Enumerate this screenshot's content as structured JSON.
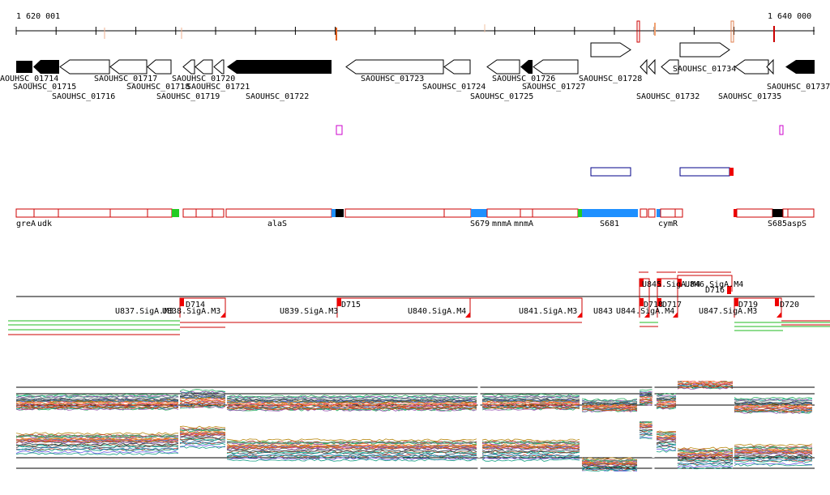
{
  "ruler": {
    "start_label": "1 620 001",
    "end_label": "1 640 000"
  },
  "genes": [
    {
      "label": "SAOUHSC_01714",
      "strand": "-",
      "filled": true
    },
    {
      "label": "SAOUHSC_01715",
      "strand": "-",
      "filled": true
    },
    {
      "label": "SAOUHSC_01716",
      "strand": "-",
      "filled": false
    },
    {
      "label": "SAOUHSC_01717",
      "strand": "-",
      "filled": false
    },
    {
      "label": "SAOUHSC_01718",
      "strand": "-",
      "filled": false
    },
    {
      "label": "SAOUHSC_01719",
      "strand": "-",
      "filled": false
    },
    {
      "label": "SAOUHSC_01720",
      "strand": "-",
      "filled": false
    },
    {
      "label": "SAOUHSC_01721",
      "strand": "-",
      "filled": false
    },
    {
      "label": "SAOUHSC_01722",
      "strand": "-",
      "filled": true
    },
    {
      "label": "SAOUHSC_01723",
      "strand": "-",
      "filled": false
    },
    {
      "label": "SAOUHSC_01724",
      "strand": "-",
      "filled": false
    },
    {
      "label": "SAOUHSC_01725",
      "strand": "-",
      "filled": false
    },
    {
      "label": "SAOUHSC_01726",
      "strand": "-",
      "filled": true
    },
    {
      "label": "SAOUHSC_01727",
      "strand": "-",
      "filled": false
    },
    {
      "label": "SAOUHSC_01728",
      "strand": "+",
      "filled": false
    },
    {
      "label": "SAOUHSC_01732",
      "strand": "-",
      "filled": false
    },
    {
      "label": "SAOUHSC_01734",
      "strand": "+",
      "filled": false
    },
    {
      "label": "SAOUHSC_01735",
      "strand": "-",
      "filled": false
    },
    {
      "label": "SAOUHSC_01737",
      "strand": "-",
      "filled": true
    }
  ],
  "operon_labels": [
    "greA",
    "udk",
    "alaS",
    "S679",
    "mnmA",
    "mnmA",
    "S681",
    "cymR",
    "S685",
    "aspS"
  ],
  "segment_labels": [
    "U837.SigA.M3",
    "U838.SigA.M3",
    "U839.SigA.M3",
    "U840.SigA.M4",
    "U841.SigA.M3",
    "U843",
    "U844.SigA.M4",
    "U845.SigA.M4",
    "U846.SigA.M4",
    "U847.SigA.M3"
  ],
  "tss_labels": [
    "D714",
    "D715",
    "D716",
    "D717",
    "D718",
    "D719",
    "D720"
  ],
  "colors": {
    "gene_fill": "#000000",
    "feature_red": "#cc0000",
    "sigma_blue": "#1e90ff",
    "green": "#22cc22",
    "magenta": "#cc00cc",
    "navy": "#000088"
  }
}
